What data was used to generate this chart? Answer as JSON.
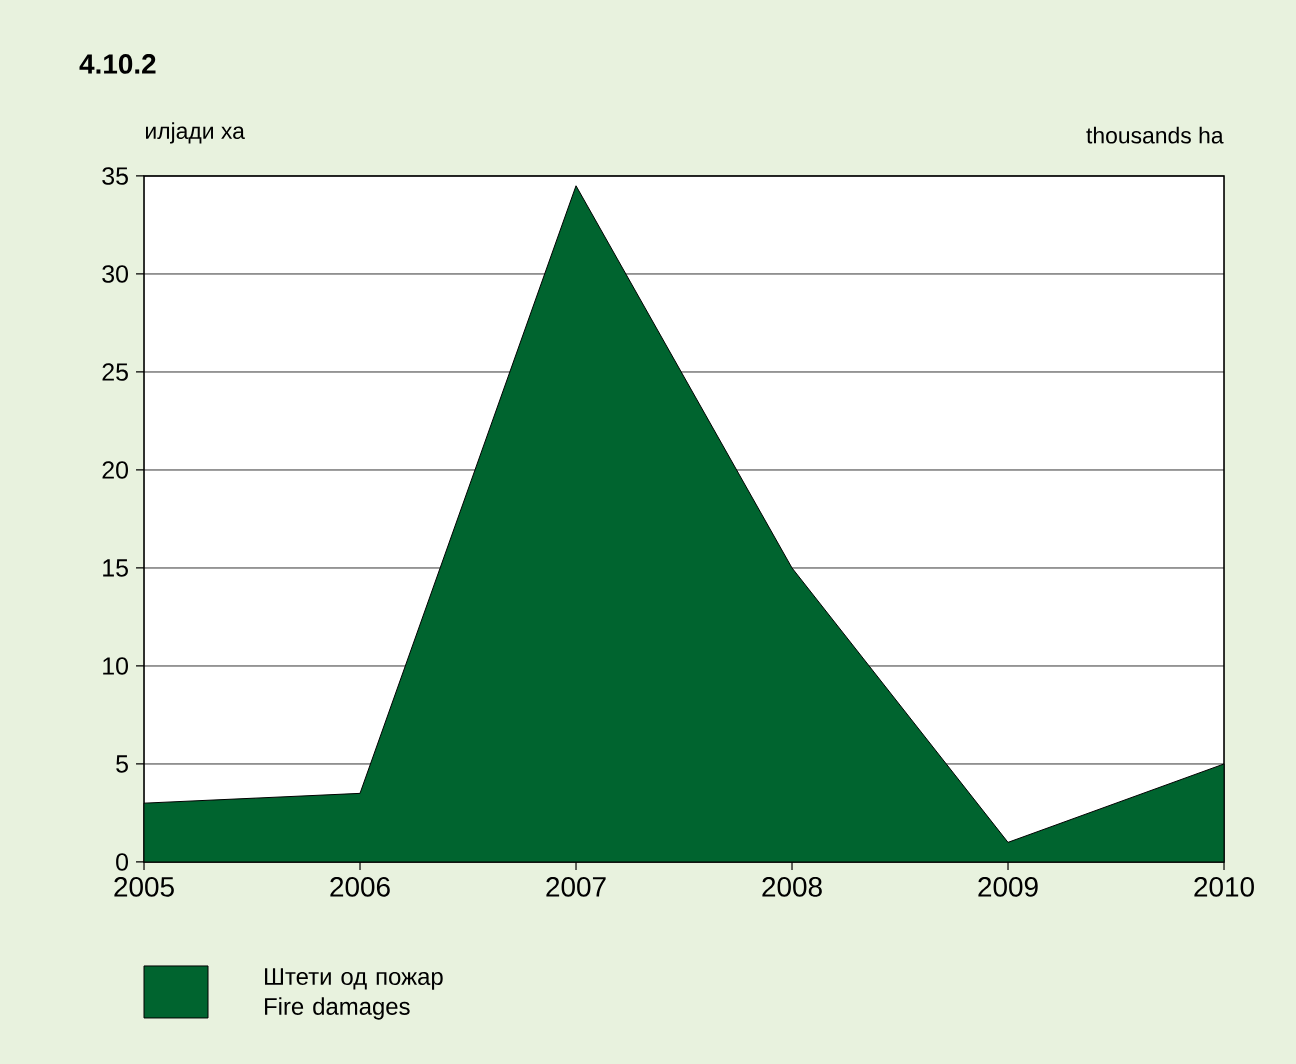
{
  "chart_data": {
    "type": "area",
    "title": "4.10.2",
    "annotations": [
      "илјади ха",
      "thousands ha"
    ],
    "x": [
      2005,
      2006,
      2007,
      2008,
      2009,
      2010
    ],
    "series": [
      {
        "name": "Штети од пожар Fire damages",
        "color": "#00642f",
        "values": [
          3,
          3.5,
          34.5,
          15,
          1,
          5
        ]
      }
    ],
    "xlim": [
      2005,
      2010
    ],
    "xticks": [
      2005,
      2006,
      2007,
      2008,
      2009,
      2010
    ],
    "ylim": [
      0,
      35
    ],
    "yticks": [
      0,
      5,
      10,
      15,
      20,
      25,
      30,
      35
    ],
    "grid": "y",
    "legend": "bottom"
  }
}
